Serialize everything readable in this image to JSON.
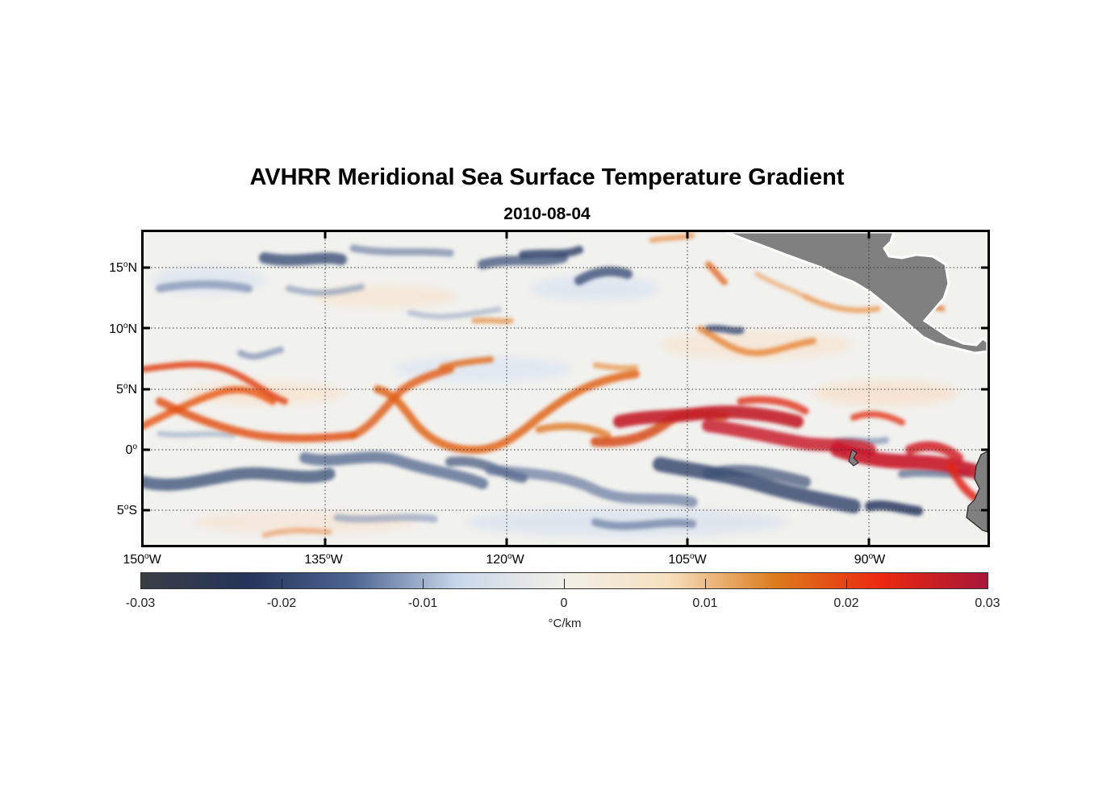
{
  "title": "AVHRR Meridional Sea Surface Temperature Gradient",
  "subtitle": "2010-08-04",
  "map": {
    "latitude_labels": [
      {
        "value": "15",
        "suffix": "N"
      },
      {
        "value": "10",
        "suffix": "N"
      },
      {
        "value": "5",
        "suffix": "N"
      },
      {
        "value": "0",
        "suffix": ""
      },
      {
        "value": "5",
        "suffix": "S"
      }
    ],
    "longitude_labels": [
      {
        "value": "150",
        "suffix": "W"
      },
      {
        "value": "135",
        "suffix": "W"
      },
      {
        "value": "120",
        "suffix": "W"
      },
      {
        "value": "105",
        "suffix": "W"
      },
      {
        "value": "90",
        "suffix": "W"
      }
    ],
    "extent": {
      "lon_min": -150,
      "lon_max": -80,
      "lat_min": -8,
      "lat_max": 18
    },
    "land_color": "#808080"
  },
  "colorbar": {
    "tick_labels": [
      "-0.03",
      "-0.02",
      "-0.01",
      "0",
      "0.01",
      "0.02",
      "0.03"
    ],
    "units": "°C/km",
    "colors": [
      "#3a3d44",
      "#24345a",
      "#4d6591",
      "#c9d8ea",
      "#f2efe8",
      "#f7dfbe",
      "#dc7a1c",
      "#ec2810",
      "#a6173a"
    ]
  }
}
